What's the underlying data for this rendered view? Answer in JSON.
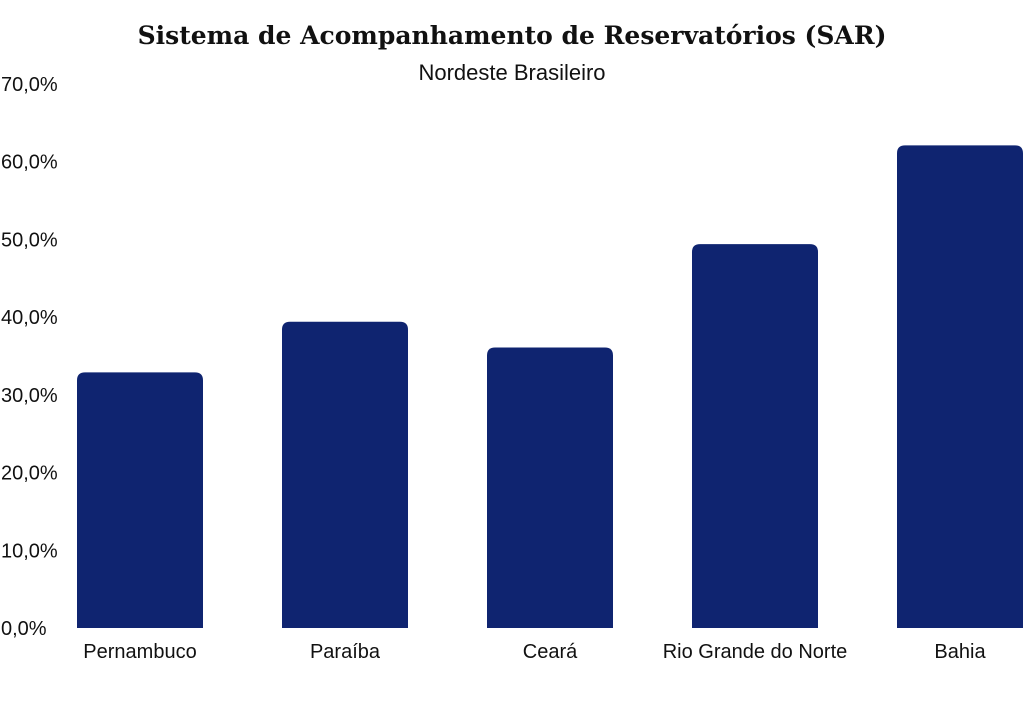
{
  "chart_data": {
    "type": "bar",
    "title": "Sistema de Acompanhamento de Reservatórios (SAR)",
    "subtitle": "Nordeste Brasileiro",
    "categories": [
      "Pernambuco",
      "Paraíba",
      "Ceará",
      "Rio Grande do Norte",
      "Bahia"
    ],
    "values": [
      32.9,
      39.4,
      36.1,
      49.4,
      62.1
    ],
    "ylim": [
      0,
      70
    ],
    "yticks": [
      0,
      10,
      20,
      30,
      40,
      50,
      60,
      70
    ],
    "ytick_labels": [
      "0,0%",
      "10,0%",
      "20,0%",
      "30,0%",
      "40,0%",
      "50,0%",
      "60,0%",
      "70,0%"
    ],
    "bar_color": "#0f2470",
    "grid": false,
    "legend": "none"
  }
}
